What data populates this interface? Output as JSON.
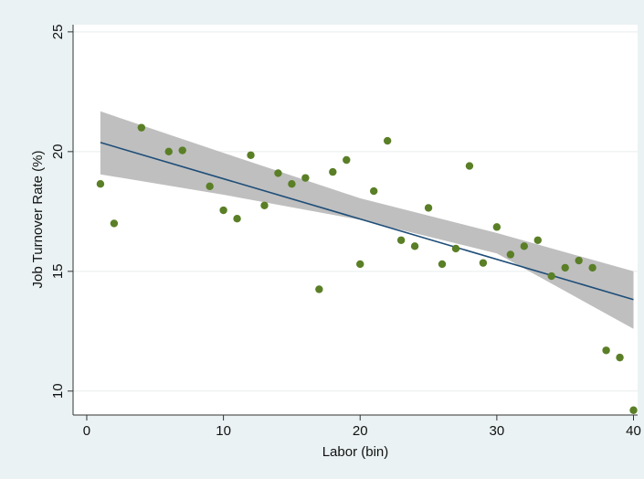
{
  "chart_data": {
    "type": "scatter",
    "title": "",
    "xlabel": "Labor (bin)",
    "ylabel": "Job Turnover Rate (%)",
    "xlim": [
      -1,
      40.3
    ],
    "ylim": [
      9,
      25.3
    ],
    "xticks": [
      0,
      10,
      20,
      30,
      40
    ],
    "yticks": [
      10,
      15,
      20,
      25
    ],
    "grid": true,
    "legend": "none",
    "colors": {
      "background": "#eaf2f3",
      "plot_bg": "#ffffff",
      "points": "#5a7f26",
      "fit_line": "#1f4e79",
      "ci_band": "#bfbfbf",
      "grid": "#e8eeee"
    },
    "points": [
      {
        "x": 1,
        "y": 18.65
      },
      {
        "x": 2,
        "y": 17.0
      },
      {
        "x": 4,
        "y": 21.0
      },
      {
        "x": 6,
        "y": 20.0
      },
      {
        "x": 7,
        "y": 20.05
      },
      {
        "x": 9,
        "y": 18.55
      },
      {
        "x": 10,
        "y": 17.55
      },
      {
        "x": 11,
        "y": 17.2
      },
      {
        "x": 12,
        "y": 19.85
      },
      {
        "x": 13,
        "y": 17.75
      },
      {
        "x": 14,
        "y": 19.1
      },
      {
        "x": 15,
        "y": 18.65
      },
      {
        "x": 16,
        "y": 18.9
      },
      {
        "x": 17,
        "y": 14.25
      },
      {
        "x": 18,
        "y": 19.15
      },
      {
        "x": 19,
        "y": 19.65
      },
      {
        "x": 20,
        "y": 15.3
      },
      {
        "x": 21,
        "y": 18.35
      },
      {
        "x": 22,
        "y": 20.45
      },
      {
        "x": 23,
        "y": 16.3
      },
      {
        "x": 24,
        "y": 16.05
      },
      {
        "x": 25,
        "y": 17.65
      },
      {
        "x": 26,
        "y": 15.3
      },
      {
        "x": 27,
        "y": 15.95
      },
      {
        "x": 28,
        "y": 19.4
      },
      {
        "x": 29,
        "y": 15.35
      },
      {
        "x": 30,
        "y": 16.85
      },
      {
        "x": 31,
        "y": 15.7
      },
      {
        "x": 32,
        "y": 16.05
      },
      {
        "x": 33,
        "y": 16.3
      },
      {
        "x": 34,
        "y": 14.8
      },
      {
        "x": 35,
        "y": 15.15
      },
      {
        "x": 36,
        "y": 15.45
      },
      {
        "x": 37,
        "y": 15.15
      },
      {
        "x": 38,
        "y": 11.7
      },
      {
        "x": 39,
        "y": 11.4
      },
      {
        "x": 40,
        "y": 9.2
      }
    ],
    "fit_line": {
      "x": [
        1,
        40
      ],
      "y": [
        20.38,
        13.82
      ]
    },
    "ci_band": {
      "x": [
        1,
        10,
        20,
        30,
        40
      ],
      "upper": [
        21.68,
        19.95,
        18.05,
        16.6,
        15.0
      ],
      "lower": [
        19.05,
        18.2,
        17.15,
        15.75,
        12.6
      ]
    }
  }
}
